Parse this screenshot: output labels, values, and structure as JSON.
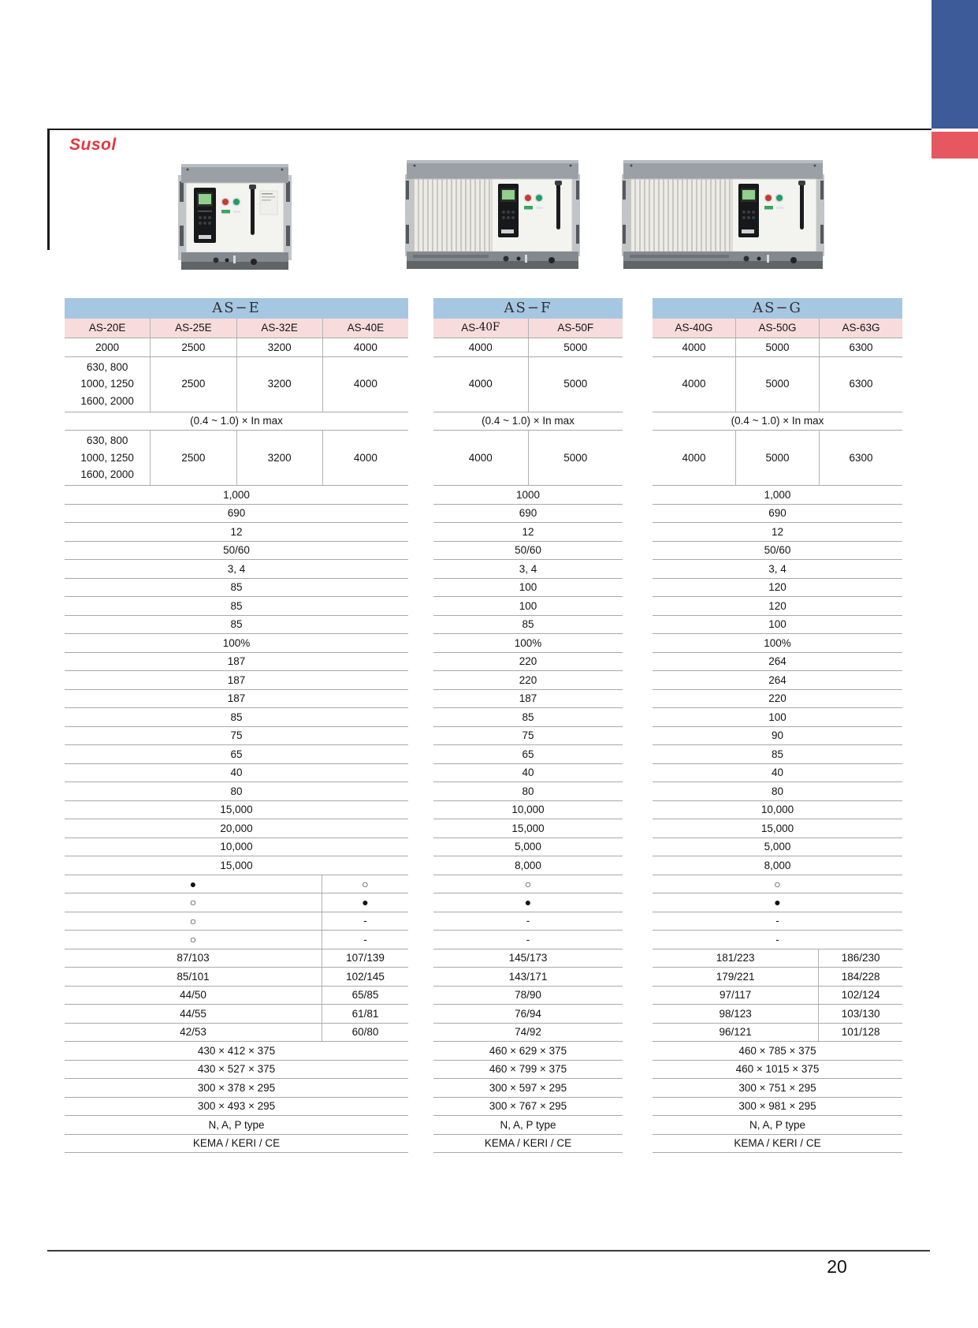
{
  "page": {
    "brand": "Susol",
    "number": "20"
  },
  "colors": {
    "table_title_blue": "#a6c7e2",
    "model_header_pink": "#f8dcdc",
    "brand_red": "#e5353f",
    "corner_tab_blue": "#3c5b98",
    "corner_tab_red": "#e65760",
    "grid_line": "#a9a9a9"
  },
  "tables": [
    {
      "id": "as-e",
      "title": "AS−E",
      "models": [
        {
          "sans": "AS-20E"
        },
        {
          "sans": "AS-25E"
        },
        {
          "sans": "AS-32E"
        },
        {
          "sans": "AS-40E"
        }
      ],
      "top": {
        "r1": [
          "2000",
          "2500",
          "3200",
          "4000"
        ],
        "r2": [
          [
            "630, 800",
            "1000, 1250",
            "1600, 2000"
          ],
          "2500",
          "3200",
          "4000"
        ],
        "range": "(0.4 ~ 1.0) × In max",
        "r3": [
          [
            "630, 800",
            "1000, 1250",
            "1600, 2000"
          ],
          "2500",
          "3200",
          "4000"
        ]
      },
      "mid_rows": [
        "1,000",
        "690",
        "12",
        "50/60",
        "3, 4",
        "85",
        "85",
        "85",
        "100%",
        "187",
        "187",
        "187",
        "85",
        "75",
        "65",
        "40",
        "80",
        "15,000",
        "20,000",
        "10,000",
        "15,000"
      ],
      "circles": {
        "left": [
          "●",
          "○",
          "○",
          "○"
        ],
        "right": [
          "○",
          "●",
          "-",
          "-"
        ]
      },
      "pairs": {
        "left": [
          "87/103",
          "85/101",
          "44/50",
          "44/55",
          "42/53"
        ],
        "right": [
          "107/139",
          "102/145",
          "65/85",
          "61/81",
          "60/80"
        ]
      },
      "dim_rows": [
        "430 × 412 × 375",
        "430 × 527 × 375",
        "300 × 378 × 295",
        "300 × 493 × 295"
      ],
      "type_row": "N, A, P type",
      "cert_row": "KEMA / KERI / CE"
    },
    {
      "id": "as-f",
      "title": "AS−F",
      "models": [
        {
          "sans": "AS- ",
          "serif": "40F"
        },
        {
          "sans": "AS-50F"
        }
      ],
      "top": {
        "r1": [
          "4000",
          "5000"
        ],
        "r2": [
          "4000",
          "5000"
        ],
        "range": "(0.4 ~ 1.0) × In max",
        "r3": [
          "4000",
          "5000"
        ]
      },
      "mid_rows": [
        "1000",
        "690",
        "12",
        "50/60",
        "3, 4",
        "100",
        "100",
        "85",
        "100%",
        "220",
        "220",
        "187",
        "85",
        "75",
        "65",
        "40",
        "80",
        "10,000",
        "15,000",
        "5,000",
        "8,000"
      ],
      "circles": {
        "rows": [
          "○",
          "●",
          "-",
          "-"
        ]
      },
      "pairs": {
        "rows": [
          "145/173",
          "143/171",
          "78/90",
          "76/94",
          "74/92"
        ]
      },
      "dim_rows": [
        "460 × 629 × 375",
        "460 × 799 × 375",
        "300 × 597 × 295",
        "300 × 767 × 295"
      ],
      "type_row": "N, A, P type",
      "cert_row": "KEMA / KERI / CE"
    },
    {
      "id": "as-g",
      "title": "AS−G",
      "models": [
        {
          "sans": "AS-40G"
        },
        {
          "sans": "AS-50G"
        },
        {
          "sans": "AS-63G"
        }
      ],
      "top": {
        "r1": [
          "4000",
          "5000",
          "6300"
        ],
        "r2": [
          "4000",
          "5000",
          "6300"
        ],
        "range": "(0.4 ~ 1.0) × In max",
        "r3": [
          "4000",
          "5000",
          "6300"
        ]
      },
      "mid_rows": [
        "1,000",
        "690",
        "12",
        "50/60",
        "3, 4",
        "120",
        "120",
        "100",
        "100%",
        "264",
        "264",
        "220",
        "100",
        "90",
        "85",
        "40",
        "80",
        "10,000",
        "15,000",
        "5,000",
        "8,000"
      ],
      "circles": {
        "rows": [
          "○",
          "●",
          "-",
          "-"
        ]
      },
      "pairs": {
        "left": [
          "181/223",
          "179/221",
          "97/117",
          "98/123",
          "96/121"
        ],
        "right": [
          "186/230",
          "184/228",
          "102/124",
          "103/130",
          "101/128"
        ]
      },
      "dim_rows": [
        "460 × 785 × 375",
        "460 × 1015 × 375",
        "300 × 751 × 295",
        "300 × 981 × 295"
      ],
      "type_row": "N, A, P type",
      "cert_row": "KEMA / KERI / CE"
    }
  ]
}
